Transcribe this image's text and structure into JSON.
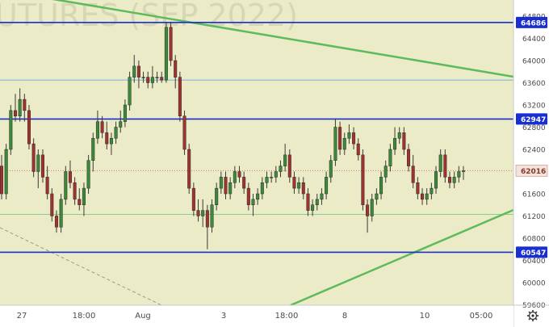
{
  "watermark": "UTURES (SEP 2022)",
  "colors": {
    "plot_bg": "#ecebc7",
    "up_candle": "#3a8a3a",
    "down_candle": "#a2322e",
    "level_line": "#1a2fd0",
    "thin_level": "#6fb3d8",
    "green_zone_line": "#86cf8a",
    "trend_line": "#5dbb5d",
    "current_price_line": "#c97c6b"
  },
  "settings_icon": "gear-icon",
  "chart_data": {
    "type": "candlestick",
    "price_axis_ticks": [
      "64800",
      "64400",
      "64000",
      "63600",
      "63200",
      "62800",
      "62400",
      "62000",
      "61600",
      "61200",
      "60800",
      "60400",
      "60000",
      "59600"
    ],
    "time_axis_labels": [
      "27",
      "18:00",
      "Aug",
      "3",
      "18:00",
      "8",
      "10",
      "05:00"
    ],
    "ylim": [
      59600,
      64900
    ],
    "levels": [
      {
        "price": 64686,
        "label": "64686"
      },
      {
        "price": 62947,
        "label": "62947"
      },
      {
        "price": 60547,
        "label": "60547"
      }
    ],
    "thin_levels": [
      63650,
      61230
    ],
    "current_price": {
      "price": 62016,
      "label": "62016"
    },
    "candles": [
      [
        62100,
        62300,
        61500,
        61600
      ],
      [
        61600,
        62500,
        61500,
        62400
      ],
      [
        62400,
        63200,
        62300,
        63100
      ],
      [
        63100,
        63400,
        62900,
        63000
      ],
      [
        63000,
        63500,
        62900,
        63300
      ],
      [
        63300,
        63400,
        62900,
        63100
      ],
      [
        63100,
        63200,
        62400,
        62500
      ],
      [
        62500,
        62600,
        61900,
        62000
      ],
      [
        62000,
        62400,
        61700,
        62300
      ],
      [
        62300,
        62400,
        61800,
        61900
      ],
      [
        61900,
        62100,
        61500,
        61600
      ],
      [
        61600,
        61700,
        61100,
        61200
      ],
      [
        61200,
        61300,
        60900,
        61000
      ],
      [
        61000,
        61600,
        60900,
        61500
      ],
      [
        61500,
        62100,
        61400,
        62000
      ],
      [
        62000,
        62200,
        61700,
        61800
      ],
      [
        61800,
        61900,
        61400,
        61500
      ],
      [
        61500,
        61700,
        61300,
        61400
      ],
      [
        61400,
        61800,
        61200,
        61700
      ],
      [
        61700,
        62300,
        61600,
        62200
      ],
      [
        62200,
        62700,
        62000,
        62600
      ],
      [
        62600,
        63100,
        62500,
        62900
      ],
      [
        62900,
        63000,
        62600,
        62700
      ],
      [
        62700,
        62900,
        62400,
        62500
      ],
      [
        62500,
        62700,
        62300,
        62600
      ],
      [
        62600,
        62900,
        62500,
        62800
      ],
      [
        62800,
        63100,
        62700,
        62900
      ],
      [
        62900,
        63300,
        62800,
        63200
      ],
      [
        63200,
        63800,
        63100,
        63700
      ],
      [
        63700,
        64100,
        63600,
        63900
      ],
      [
        63900,
        64000,
        63500,
        63700
      ],
      [
        63700,
        63800,
        63600,
        63700
      ],
      [
        63700,
        63800,
        63500,
        63600
      ],
      [
        63600,
        63900,
        63500,
        63700
      ],
      [
        63700,
        63800,
        63600,
        63700
      ],
      [
        63700,
        63800,
        63600,
        63650
      ],
      [
        63650,
        64700,
        63600,
        64600
      ],
      [
        64600,
        64700,
        63900,
        64000
      ],
      [
        64000,
        64100,
        63500,
        63700
      ],
      [
        63700,
        63800,
        62900,
        63000
      ],
      [
        63000,
        63100,
        62300,
        62400
      ],
      [
        62400,
        62500,
        61600,
        61700
      ],
      [
        61700,
        61800,
        61200,
        61300
      ],
      [
        61300,
        61500,
        61100,
        61200
      ],
      [
        61200,
        61500,
        61000,
        61300
      ],
      [
        61300,
        61400,
        60600,
        61000
      ],
      [
        61000,
        61500,
        60900,
        61400
      ],
      [
        61400,
        61800,
        61300,
        61700
      ],
      [
        61700,
        62000,
        61600,
        61900
      ],
      [
        61900,
        62000,
        61500,
        61600
      ],
      [
        61600,
        61900,
        61500,
        61800
      ],
      [
        61800,
        62100,
        61700,
        62000
      ],
      [
        62000,
        62100,
        61800,
        61900
      ],
      [
        61900,
        62000,
        61600,
        61700
      ],
      [
        61700,
        61800,
        61300,
        61400
      ],
      [
        61400,
        61600,
        61200,
        61500
      ],
      [
        61500,
        61700,
        61400,
        61600
      ],
      [
        61600,
        61900,
        61500,
        61800
      ],
      [
        61800,
        62000,
        61700,
        61900
      ],
      [
        61900,
        62000,
        61800,
        61900
      ],
      [
        61900,
        62100,
        61800,
        62000
      ],
      [
        62000,
        62200,
        61900,
        62100
      ],
      [
        62100,
        62500,
        62000,
        62300
      ],
      [
        62300,
        62400,
        61800,
        61900
      ],
      [
        61900,
        62000,
        61600,
        61700
      ],
      [
        61700,
        61900,
        61600,
        61800
      ],
      [
        61800,
        61900,
        61500,
        61600
      ],
      [
        61600,
        61700,
        61200,
        61300
      ],
      [
        61300,
        61500,
        61200,
        61400
      ],
      [
        61400,
        61600,
        61300,
        61500
      ],
      [
        61500,
        61700,
        61400,
        61600
      ],
      [
        61600,
        62000,
        61500,
        61900
      ],
      [
        61900,
        62300,
        61800,
        62200
      ],
      [
        62200,
        62950,
        62100,
        62800
      ],
      [
        62800,
        62900,
        62300,
        62400
      ],
      [
        62400,
        62700,
        62300,
        62600
      ],
      [
        62600,
        62850,
        62500,
        62700
      ],
      [
        62700,
        62800,
        62400,
        62500
      ],
      [
        62500,
        62600,
        62200,
        62300
      ],
      [
        62300,
        62400,
        61300,
        61400
      ],
      [
        61400,
        61500,
        60900,
        61200
      ],
      [
        61200,
        61600,
        61100,
        61500
      ],
      [
        61500,
        61700,
        61400,
        61600
      ],
      [
        61600,
        62000,
        61500,
        61900
      ],
      [
        61900,
        62200,
        61800,
        62100
      ],
      [
        62100,
        62500,
        62000,
        62400
      ],
      [
        62400,
        62800,
        62300,
        62600
      ],
      [
        62600,
        62800,
        62500,
        62700
      ],
      [
        62700,
        62800,
        62300,
        62400
      ],
      [
        62400,
        62500,
        62000,
        62100
      ],
      [
        62100,
        62300,
        61700,
        61800
      ],
      [
        61800,
        61900,
        61500,
        61600
      ],
      [
        61600,
        61700,
        61400,
        61500
      ],
      [
        61500,
        61700,
        61400,
        61600
      ],
      [
        61600,
        61800,
        61500,
        61700
      ],
      [
        61700,
        62100,
        61600,
        62000
      ],
      [
        62000,
        62400,
        61900,
        62300
      ],
      [
        62300,
        62400,
        61800,
        61900
      ],
      [
        61900,
        62000,
        61700,
        61800
      ],
      [
        61800,
        62000,
        61700,
        61900
      ],
      [
        61900,
        62100,
        61800,
        62000
      ],
      [
        62000,
        62100,
        61850,
        62016
      ]
    ]
  }
}
